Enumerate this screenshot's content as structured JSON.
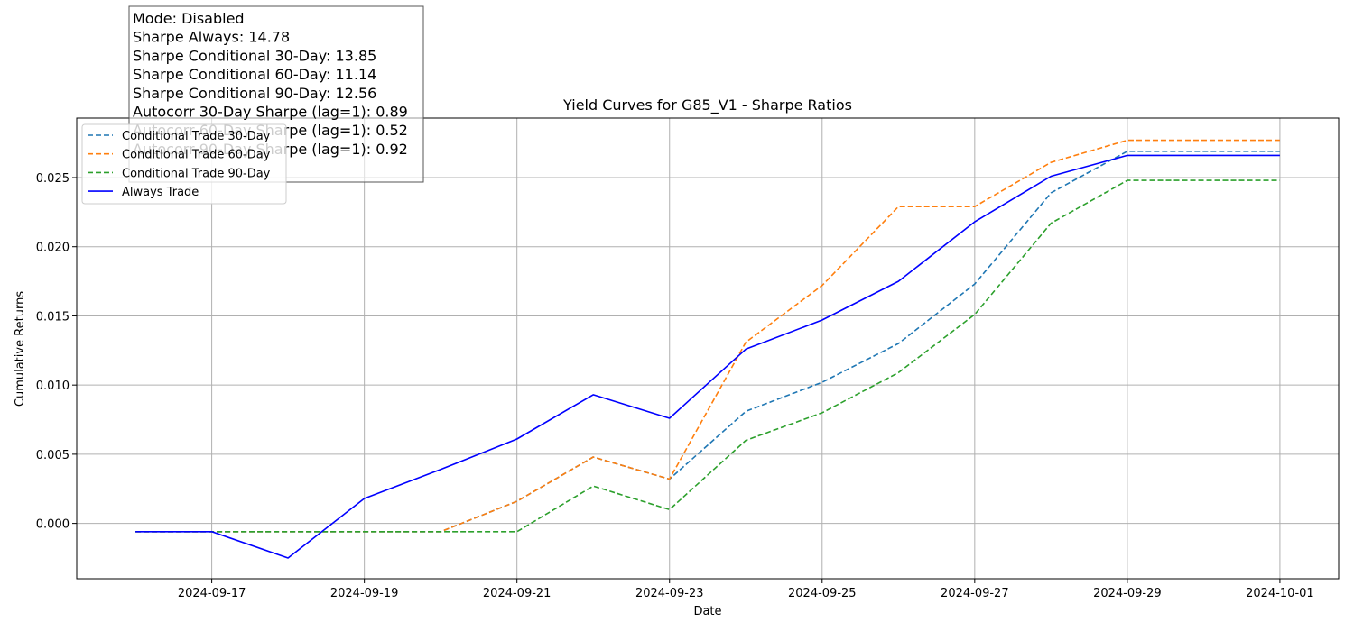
{
  "chart_data": {
    "type": "line",
    "title": "Yield Curves for G85_V1 - Sharpe Ratios",
    "xlabel": "Date",
    "ylabel": "Cumulative Returns",
    "x": [
      "2024-09-16",
      "2024-09-17",
      "2024-09-18",
      "2024-09-19",
      "2024-09-20",
      "2024-09-21",
      "2024-09-22",
      "2024-09-23",
      "2024-09-24",
      "2024-09-25",
      "2024-09-26",
      "2024-09-27",
      "2024-09-28",
      "2024-09-29",
      "2024-09-30",
      "2024-10-01"
    ],
    "xlim": [
      "2024-09-15.23",
      "2024-10-01.77"
    ],
    "ylim": [
      -0.004,
      0.0293
    ],
    "x_ticks": [
      "2024-09-17",
      "2024-09-19",
      "2024-09-21",
      "2024-09-23",
      "2024-09-25",
      "2024-09-27",
      "2024-09-29",
      "2024-10-01"
    ],
    "y_ticks": [
      "0.000",
      "0.005",
      "0.010",
      "0.015",
      "0.020",
      "0.025"
    ],
    "grid": true,
    "legend_position": "upper-left",
    "series": [
      {
        "name": "Conditional Trade 30-Day",
        "color": "#1f77b4",
        "style": "dashed",
        "values": [
          -0.0006,
          -0.0006,
          -0.0006,
          -0.0006,
          -0.0006,
          0.0016,
          0.0048,
          0.0032,
          0.0081,
          0.0102,
          0.013,
          0.0173,
          0.0239,
          0.0269,
          0.0269,
          0.0269
        ]
      },
      {
        "name": "Conditional Trade 60-Day",
        "color": "#ff7f0e",
        "style": "dashed",
        "values": [
          -0.0006,
          -0.0006,
          -0.0006,
          -0.0006,
          -0.0006,
          0.0016,
          0.0048,
          0.0032,
          0.0131,
          0.0172,
          0.0229,
          0.0229,
          0.0261,
          0.0277,
          0.0277,
          0.0277
        ]
      },
      {
        "name": "Conditional Trade 90-Day",
        "color": "#2ca02c",
        "style": "dashed",
        "values": [
          -0.0006,
          -0.0006,
          -0.0006,
          -0.0006,
          -0.0006,
          -0.0006,
          0.0027,
          0.001,
          0.006,
          0.008,
          0.0109,
          0.0151,
          0.0217,
          0.0248,
          0.0248,
          0.0248
        ]
      },
      {
        "name": "Always Trade",
        "color": "#0000ff",
        "style": "solid",
        "values": [
          -0.0006,
          -0.0006,
          -0.0025,
          0.0018,
          0.0039,
          0.0061,
          0.0093,
          0.0076,
          0.0126,
          0.0147,
          0.0175,
          0.0218,
          0.0251,
          0.0266,
          0.0266,
          0.0266
        ]
      }
    ],
    "stats_box": [
      "Mode: Disabled",
      "Sharpe Always: 14.78",
      "Sharpe Conditional 30-Day: 13.85",
      "Sharpe Conditional 60-Day: 11.14",
      "Sharpe Conditional 90-Day: 12.56",
      "Autocorr 30-Day Sharpe (lag=1): 0.89",
      "Autocorr 60-Day Sharpe (lag=1): 0.52",
      "Autocorr 90-Day Sharpe (lag=1): 0.92"
    ]
  }
}
